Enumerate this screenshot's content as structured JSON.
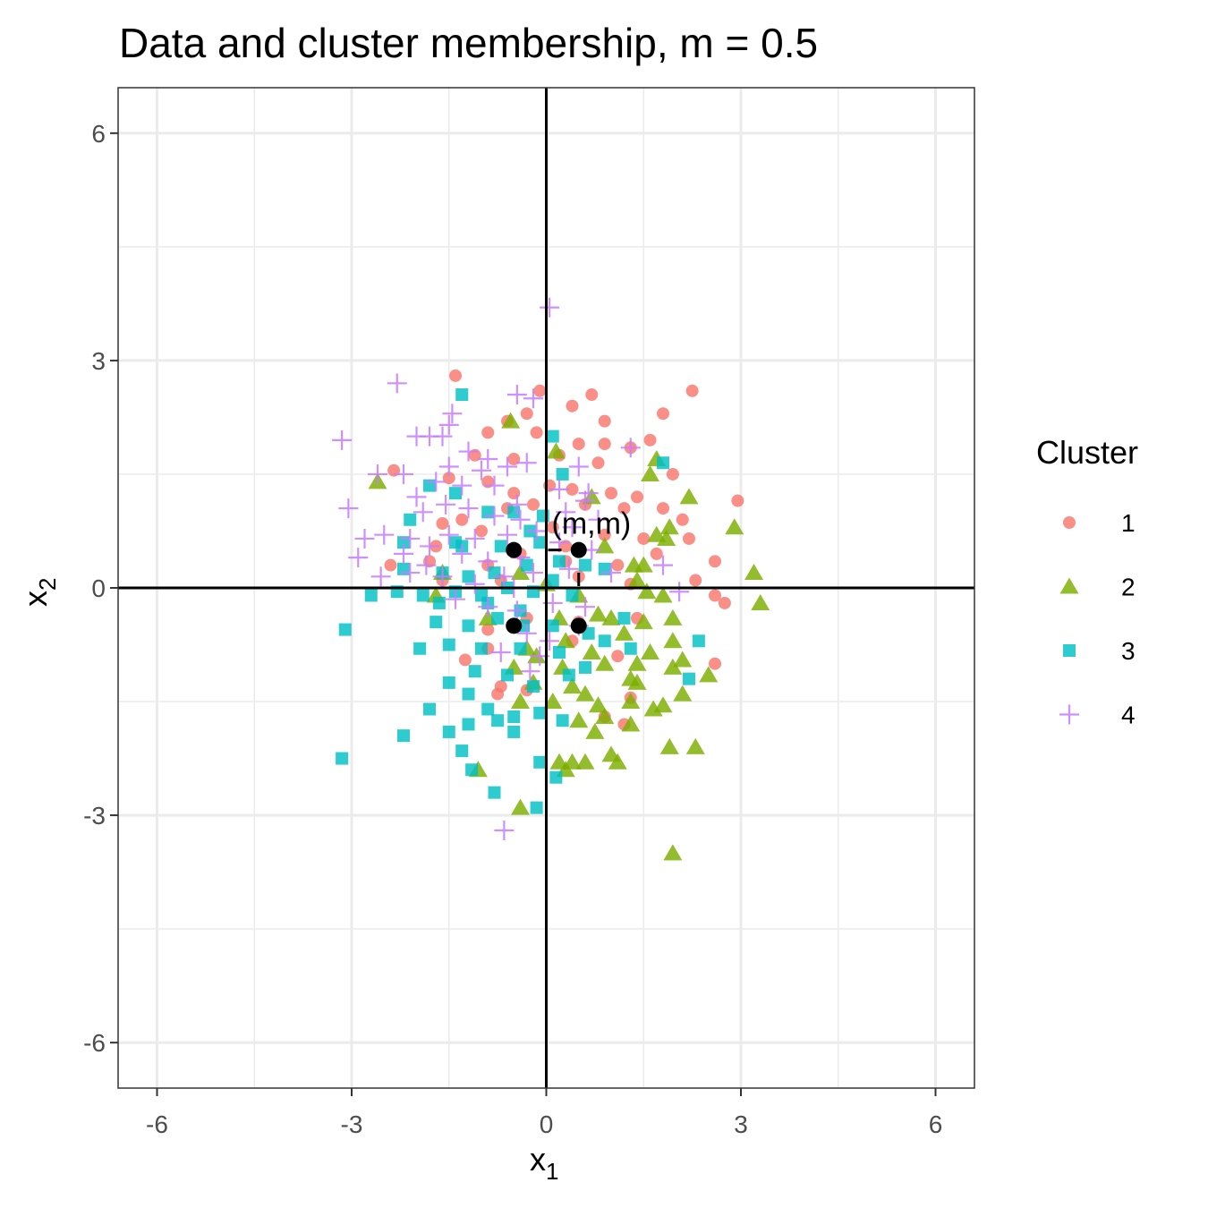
{
  "chart_data": {
    "type": "scatter",
    "title": "Data and cluster membership, m = 0.5",
    "xlabel": "x",
    "xlabel_sub": "1",
    "ylabel": "x",
    "ylabel_sub": "2",
    "xlim": [
      -6.6,
      6.6
    ],
    "ylim": [
      -6.6,
      6.6
    ],
    "x_ticks": [
      -6,
      -3,
      0,
      3,
      6
    ],
    "y_ticks": [
      -6,
      -3,
      0,
      3,
      6
    ],
    "x_tick_labels": [
      "-6",
      "-3",
      "0",
      "3",
      "6"
    ],
    "y_tick_labels": [
      "-6",
      "-3",
      "0",
      "3",
      "6"
    ],
    "grid": true,
    "legend_position": "right",
    "legend_title": "Cluster",
    "series": [
      {
        "name": "1",
        "shape": "circle",
        "color": "#F8766D",
        "points": [
          [
            -1.4,
            2.8
          ],
          [
            -0.1,
            2.6
          ],
          [
            0.7,
            2.55
          ],
          [
            2.25,
            2.6
          ],
          [
            0.4,
            2.4
          ],
          [
            -0.3,
            2.3
          ],
          [
            -0.6,
            2.2
          ],
          [
            0.9,
            2.2
          ],
          [
            1.8,
            2.3
          ],
          [
            -0.9,
            2.05
          ],
          [
            -0.15,
            2.05
          ],
          [
            0.5,
            1.9
          ],
          [
            1.3,
            1.85
          ],
          [
            1.6,
            1.95
          ],
          [
            -1.1,
            1.75
          ],
          [
            -0.5,
            1.7
          ],
          [
            0.2,
            1.75
          ],
          [
            0.8,
            1.65
          ],
          [
            -2.35,
            1.55
          ],
          [
            -1.5,
            1.45
          ],
          [
            -0.9,
            1.4
          ],
          [
            0.05,
            1.35
          ],
          [
            0.4,
            1.3
          ],
          [
            1.0,
            1.25
          ],
          [
            1.4,
            1.2
          ],
          [
            1.95,
            1.5
          ],
          [
            2.95,
            1.15
          ],
          [
            -0.6,
            1.05
          ],
          [
            -0.2,
            1.1
          ],
          [
            0.6,
            1.1
          ],
          [
            1.2,
            1.05
          ],
          [
            1.8,
            1.05
          ],
          [
            2.1,
            0.9
          ],
          [
            -1.6,
            0.85
          ],
          [
            -1.0,
            0.75
          ],
          [
            0.1,
            0.8
          ],
          [
            0.9,
            0.7
          ],
          [
            1.5,
            0.65
          ],
          [
            2.2,
            0.65
          ],
          [
            -2.4,
            0.3
          ],
          [
            -1.8,
            0.35
          ],
          [
            -0.9,
            0.3
          ],
          [
            -0.4,
            0.45
          ],
          [
            0.3,
            0.35
          ],
          [
            1.1,
            0.3
          ],
          [
            1.7,
            0.45
          ],
          [
            2.6,
            0.35
          ],
          [
            -1.6,
            0.1
          ],
          [
            -0.7,
            0.1
          ],
          [
            0.5,
            0.15
          ],
          [
            1.3,
            0.05
          ],
          [
            2.3,
            0.1
          ],
          [
            2.6,
            -0.1
          ],
          [
            2.75,
            -0.2
          ],
          [
            1.4,
            -0.4
          ],
          [
            0.5,
            -0.45
          ],
          [
            -0.3,
            -0.4
          ],
          [
            -0.9,
            -0.55
          ],
          [
            -0.9,
            -0.8
          ],
          [
            -1.25,
            -0.95
          ],
          [
            0.4,
            -0.7
          ],
          [
            1.1,
            -0.9
          ],
          [
            2.6,
            -1.0
          ],
          [
            -0.7,
            -1.3
          ],
          [
            -0.3,
            -1.35
          ],
          [
            -0.75,
            -1.4
          ],
          [
            1.3,
            -1.45
          ],
          [
            1.2,
            -1.8
          ],
          [
            0.9,
            -1.7
          ],
          [
            -1.7,
            0.55
          ],
          [
            -1.3,
            0.9
          ],
          [
            0.3,
            0.55
          ],
          [
            -0.5,
            1.25
          ],
          [
            0.9,
            1.9
          ]
        ]
      },
      {
        "name": "2",
        "shape": "triangle",
        "color": "#7CAE00",
        "points": [
          [
            -0.55,
            2.2
          ],
          [
            -2.6,
            1.4
          ],
          [
            1.7,
            1.7
          ],
          [
            1.6,
            1.5
          ],
          [
            2.2,
            1.2
          ],
          [
            1.9,
            0.8
          ],
          [
            2.9,
            0.8
          ],
          [
            1.85,
            0.65
          ],
          [
            0.9,
            0.55
          ],
          [
            1.5,
            0.3
          ],
          [
            3.2,
            0.2
          ],
          [
            3.3,
            -0.2
          ],
          [
            1.4,
            0.1
          ],
          [
            1.8,
            -0.1
          ],
          [
            1.55,
            -0.05
          ],
          [
            0.5,
            -0.1
          ],
          [
            1.95,
            -0.4
          ],
          [
            1.5,
            -0.45
          ],
          [
            0.8,
            -0.35
          ],
          [
            1.0,
            -0.4
          ],
          [
            0.2,
            -0.4
          ],
          [
            1.2,
            -0.6
          ],
          [
            0.3,
            -0.7
          ],
          [
            1.95,
            -0.7
          ],
          [
            1.6,
            -0.85
          ],
          [
            0.7,
            -0.85
          ],
          [
            -0.15,
            -0.9
          ],
          [
            1.4,
            -1.0
          ],
          [
            2.1,
            -0.95
          ],
          [
            0.9,
            -1.0
          ],
          [
            1.95,
            -1.05
          ],
          [
            0.25,
            -1.05
          ],
          [
            -0.5,
            -1.05
          ],
          [
            2.5,
            -1.15
          ],
          [
            1.3,
            -1.2
          ],
          [
            0.4,
            -1.3
          ],
          [
            1.4,
            -1.25
          ],
          [
            -0.2,
            -1.25
          ],
          [
            0.6,
            -1.4
          ],
          [
            2.1,
            -1.4
          ],
          [
            0.8,
            -1.55
          ],
          [
            1.3,
            -1.5
          ],
          [
            1.8,
            -1.55
          ],
          [
            1.65,
            -1.6
          ],
          [
            0.1,
            -1.5
          ],
          [
            -0.4,
            -1.5
          ],
          [
            0.9,
            -1.7
          ],
          [
            1.3,
            -1.8
          ],
          [
            0.75,
            -1.9
          ],
          [
            0.5,
            -1.75
          ],
          [
            1.9,
            -2.1
          ],
          [
            2.3,
            -2.1
          ],
          [
            1.0,
            -2.2
          ],
          [
            1.1,
            -2.3
          ],
          [
            0.2,
            -2.3
          ],
          [
            0.4,
            -2.3
          ],
          [
            0.6,
            -2.3
          ],
          [
            -1.05,
            -2.4
          ],
          [
            0.3,
            -2.4
          ],
          [
            -0.4,
            -2.9
          ],
          [
            1.95,
            -3.5
          ],
          [
            0.15,
            1.8
          ],
          [
            0.7,
            1.2
          ],
          [
            1.35,
            0.3
          ],
          [
            -1.6,
            0.2
          ],
          [
            -1.7,
            -0.1
          ],
          [
            -0.4,
            0.2
          ],
          [
            -0.9,
            -0.4
          ],
          [
            0.0,
            0.05
          ],
          [
            -0.3,
            -0.8
          ],
          [
            1.7,
            0.7
          ]
        ]
      },
      {
        "name": "3",
        "shape": "square",
        "color": "#00BFC4",
        "points": [
          [
            -1.3,
            2.55
          ],
          [
            0.1,
            2.0
          ],
          [
            1.8,
            1.65
          ],
          [
            -1.8,
            1.35
          ],
          [
            -1.4,
            1.25
          ],
          [
            -2.1,
            0.9
          ],
          [
            -0.9,
            1.0
          ],
          [
            -0.5,
            1.0
          ],
          [
            -0.05,
            0.95
          ],
          [
            0.25,
            1.5
          ],
          [
            -2.2,
            0.6
          ],
          [
            -1.4,
            0.6
          ],
          [
            -0.7,
            0.55
          ],
          [
            -0.1,
            0.6
          ],
          [
            0.6,
            0.3
          ],
          [
            -2.2,
            0.25
          ],
          [
            -1.6,
            0.2
          ],
          [
            -1.2,
            0.15
          ],
          [
            -0.8,
            0.2
          ],
          [
            -0.3,
            0.3
          ],
          [
            0.2,
            0.35
          ],
          [
            -2.7,
            -0.1
          ],
          [
            -2.3,
            -0.05
          ],
          [
            -1.9,
            -0.1
          ],
          [
            -1.4,
            -0.05
          ],
          [
            -1.0,
            -0.1
          ],
          [
            -0.6,
            0.0
          ],
          [
            -0.2,
            -0.05
          ],
          [
            0.4,
            -0.1
          ],
          [
            -3.1,
            -0.55
          ],
          [
            -1.7,
            -0.45
          ],
          [
            -1.2,
            -0.5
          ],
          [
            -0.75,
            -0.4
          ],
          [
            -0.35,
            -0.5
          ],
          [
            0.1,
            -0.5
          ],
          [
            0.65,
            -0.6
          ],
          [
            -1.95,
            -0.8
          ],
          [
            -1.5,
            -0.75
          ],
          [
            -1.0,
            -0.8
          ],
          [
            -0.4,
            -0.8
          ],
          [
            0.2,
            -0.85
          ],
          [
            0.9,
            -0.7
          ],
          [
            1.3,
            -0.8
          ],
          [
            2.35,
            -0.7
          ],
          [
            -1.5,
            -1.25
          ],
          [
            -1.1,
            -1.1
          ],
          [
            -0.6,
            -1.15
          ],
          [
            -0.2,
            -1.3
          ],
          [
            0.35,
            -1.15
          ],
          [
            0.6,
            -1.05
          ],
          [
            2.2,
            -1.2
          ],
          [
            -1.2,
            -1.4
          ],
          [
            -0.9,
            -1.6
          ],
          [
            -0.5,
            -1.7
          ],
          [
            -0.1,
            -1.65
          ],
          [
            0.25,
            -1.75
          ],
          [
            -1.8,
            -1.6
          ],
          [
            -1.2,
            -1.8
          ],
          [
            -0.75,
            -1.75
          ],
          [
            -1.5,
            -1.9
          ],
          [
            -0.5,
            -1.9
          ],
          [
            -2.2,
            -1.95
          ],
          [
            -1.3,
            -2.15
          ],
          [
            -3.15,
            -2.25
          ],
          [
            -0.1,
            -2.3
          ],
          [
            -1.15,
            -2.4
          ],
          [
            -0.8,
            -2.7
          ],
          [
            -0.15,
            -2.9
          ],
          [
            0.15,
            -2.5
          ],
          [
            -0.4,
            -0.3
          ],
          [
            -0.9,
            -0.2
          ],
          [
            -1.3,
            0.55
          ],
          [
            -1.65,
            -0.2
          ],
          [
            0.1,
            0.1
          ],
          [
            -0.25,
            0.75
          ],
          [
            0.9,
            0.25
          ],
          [
            1.2,
            -0.4
          ]
        ]
      },
      {
        "name": "4",
        "shape": "plus",
        "color": "#C77CFF",
        "points": [
          [
            0.05,
            3.7
          ],
          [
            -2.3,
            2.7
          ],
          [
            -0.45,
            2.55
          ],
          [
            -0.2,
            2.5
          ],
          [
            -1.45,
            2.3
          ],
          [
            -1.5,
            2.15
          ],
          [
            -1.6,
            2.0
          ],
          [
            -2.0,
            2.0
          ],
          [
            -3.15,
            1.95
          ],
          [
            -1.8,
            2.0
          ],
          [
            1.3,
            1.85
          ],
          [
            -1.2,
            1.8
          ],
          [
            -0.9,
            1.7
          ],
          [
            -0.6,
            1.6
          ],
          [
            -0.3,
            1.65
          ],
          [
            0.5,
            1.6
          ],
          [
            -2.6,
            1.5
          ],
          [
            -2.2,
            1.5
          ],
          [
            -1.7,
            1.4
          ],
          [
            -1.3,
            1.35
          ],
          [
            -0.8,
            1.35
          ],
          [
            0.2,
            1.3
          ],
          [
            0.65,
            1.25
          ],
          [
            -2.0,
            1.2
          ],
          [
            -1.55,
            1.1
          ],
          [
            -0.45,
            1.1
          ],
          [
            -3.05,
            1.05
          ],
          [
            -1.9,
            1.0
          ],
          [
            -1.2,
            1.05
          ],
          [
            -0.8,
            0.95
          ],
          [
            -0.4,
            0.9
          ],
          [
            -2.8,
            0.65
          ],
          [
            -2.5,
            0.7
          ],
          [
            -2.1,
            0.65
          ],
          [
            -1.5,
            0.7
          ],
          [
            -1.1,
            0.65
          ],
          [
            -0.6,
            0.7
          ],
          [
            -0.15,
            0.75
          ],
          [
            0.4,
            0.8
          ],
          [
            -2.9,
            0.4
          ],
          [
            -2.2,
            0.45
          ],
          [
            -1.8,
            0.55
          ],
          [
            -1.3,
            0.45
          ],
          [
            -0.9,
            0.35
          ],
          [
            -0.4,
            0.4
          ],
          [
            0.2,
            0.6
          ],
          [
            0.7,
            0.5
          ],
          [
            -2.1,
            0.2
          ],
          [
            -1.6,
            0.15
          ],
          [
            -1.1,
            0.05
          ],
          [
            -0.65,
            0.15
          ],
          [
            -0.2,
            0.2
          ],
          [
            0.35,
            0.25
          ],
          [
            1.0,
            0.2
          ],
          [
            1.8,
            0.3
          ],
          [
            -1.4,
            -0.15
          ],
          [
            -0.9,
            -0.25
          ],
          [
            -0.45,
            -0.3
          ],
          [
            0.1,
            -0.2
          ],
          [
            0.6,
            -0.25
          ],
          [
            2.05,
            -0.05
          ],
          [
            -0.3,
            -0.6
          ],
          [
            0.05,
            -0.7
          ],
          [
            0.5,
            -0.5
          ],
          [
            -0.7,
            -0.85
          ],
          [
            -0.25,
            -1.1
          ],
          [
            -0.1,
            -0.9
          ],
          [
            -0.65,
            -3.2
          ],
          [
            -0.5,
            0.0
          ],
          [
            0.3,
            1.0
          ],
          [
            0.8,
            0.9
          ],
          [
            -1.0,
            1.55
          ],
          [
            -2.55,
            0.15
          ],
          [
            -1.85,
            0.3
          ],
          [
            -1.5,
            1.6
          ],
          [
            0.6,
            1.15
          ]
        ]
      }
    ],
    "highlight_points": [
      [
        -0.5,
        0.5
      ],
      [
        0.5,
        0.5
      ],
      [
        -0.5,
        -0.5
      ],
      [
        0.5,
        -0.5
      ]
    ],
    "annotation": {
      "text": "(m,m)",
      "x": 0.5,
      "y": 0.5
    }
  }
}
